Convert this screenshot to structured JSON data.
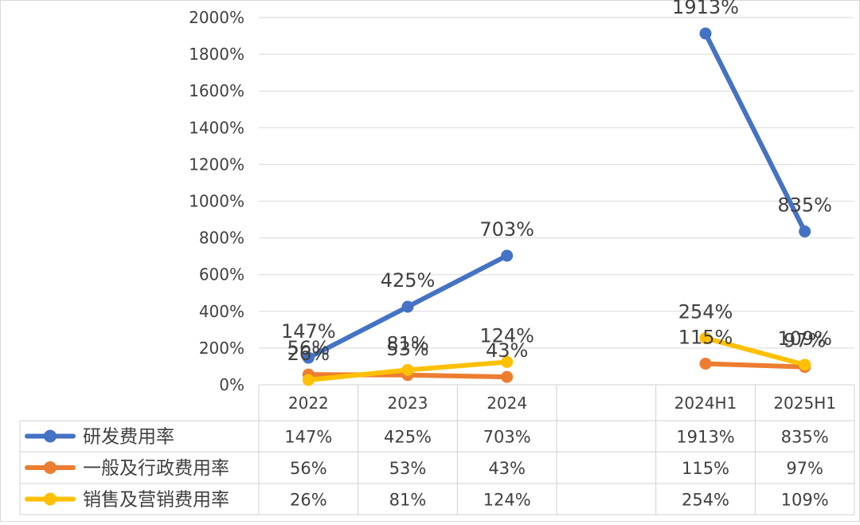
{
  "chart_data": {
    "type": "line",
    "title": "",
    "xlabel": "",
    "ylabel": "",
    "categories": [
      "2022",
      "2023",
      "2024",
      "",
      "2024H1",
      "2025H1"
    ],
    "ylim": [
      0,
      2000
    ],
    "y_ticks": [
      "0%",
      "200%",
      "400%",
      "600%",
      "800%",
      "1000%",
      "1200%",
      "1400%",
      "1600%",
      "1800%",
      "2000%"
    ],
    "grid": true,
    "legend_placement": "data-table-left",
    "series": [
      {
        "name": "研发费用率",
        "color": "#4472C4",
        "values": [
          147,
          425,
          703,
          null,
          1913,
          835
        ],
        "labels": [
          "147%",
          "425%",
          "703%",
          "",
          "1913%",
          "835%"
        ]
      },
      {
        "name": "一般及行政费用率",
        "color": "#ED7D31",
        "values": [
          56,
          53,
          43,
          null,
          115,
          97
        ],
        "labels": [
          "56%",
          "53%",
          "43%",
          "",
          "115%",
          "97%"
        ]
      },
      {
        "name": "销售及营销费用率",
        "color": "#FFC000",
        "values": [
          26,
          81,
          124,
          null,
          254,
          109
        ],
        "labels": [
          "26%",
          "81%",
          "124%",
          "",
          "254%",
          "109%"
        ]
      }
    ]
  }
}
